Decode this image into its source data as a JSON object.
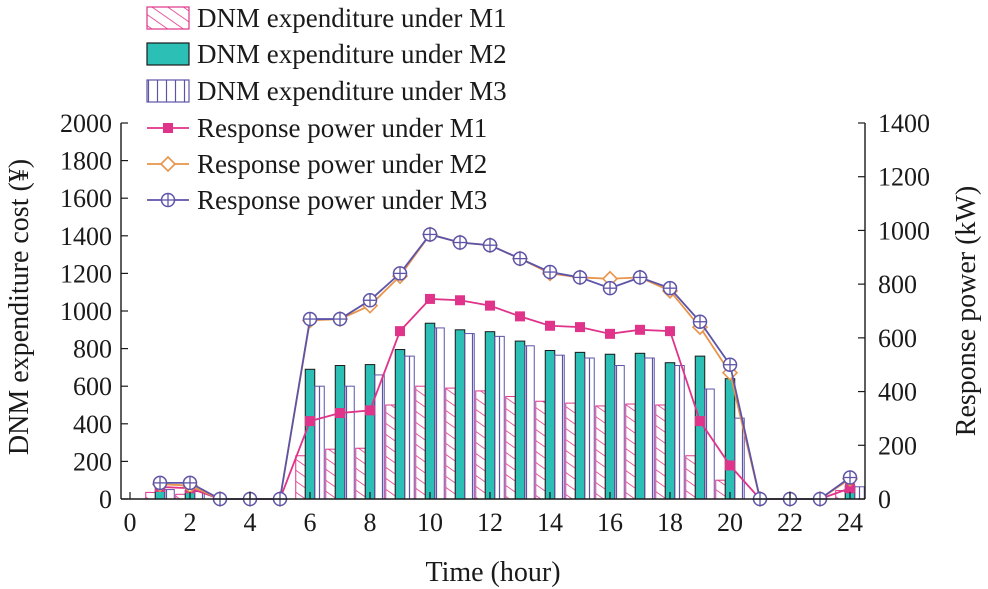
{
  "chart_data": {
    "type": "bar",
    "x": [
      1,
      2,
      3,
      4,
      5,
      6,
      7,
      8,
      9,
      10,
      11,
      12,
      13,
      14,
      15,
      16,
      17,
      18,
      19,
      20,
      21,
      22,
      23,
      24
    ],
    "xticks": [
      0,
      2,
      4,
      6,
      8,
      10,
      12,
      14,
      16,
      18,
      20,
      22,
      24
    ],
    "xlim": [
      -0.3,
      24.5
    ],
    "xlabel": "Time (hour)",
    "ylabel_left": "DNM expenditure cost (¥)",
    "ylabel_right": "Response power (kW)",
    "ylim_left": [
      0,
      2000
    ],
    "yticks_left": [
      0,
      200,
      400,
      600,
      800,
      1000,
      1200,
      1400,
      1600,
      1800,
      2000
    ],
    "ylim_right": [
      0,
      1400
    ],
    "yticks_right": [
      0,
      200,
      400,
      600,
      800,
      1000,
      1200,
      1400
    ],
    "bar_series": [
      {
        "name": "DNM expenditure under M1",
        "color": "#e0338a",
        "pattern": "diagonal-hatch",
        "values": [
          35,
          25,
          0,
          0,
          0,
          230,
          265,
          270,
          500,
          600,
          590,
          575,
          545,
          520,
          510,
          495,
          505,
          500,
          230,
          100,
          0,
          0,
          0,
          45
        ]
      },
      {
        "name": "DNM expenditure under M2",
        "color": "#2bbfb5",
        "pattern": "solid",
        "values": [
          55,
          45,
          0,
          0,
          0,
          690,
          710,
          715,
          795,
          935,
          900,
          890,
          840,
          790,
          780,
          770,
          775,
          725,
          760,
          640,
          0,
          0,
          0,
          70
        ]
      },
      {
        "name": "DNM expenditure under M3",
        "color": "#5d54a8",
        "pattern": "vertical-hatch",
        "values": [
          50,
          40,
          0,
          0,
          0,
          600,
          600,
          660,
          760,
          910,
          880,
          865,
          815,
          765,
          750,
          710,
          750,
          710,
          585,
          430,
          0,
          0,
          0,
          65
        ]
      }
    ],
    "line_series": [
      {
        "name": "Response power under M1",
        "color": "#e0338a",
        "marker": "square",
        "values": [
          45,
          40,
          0,
          0,
          0,
          290,
          320,
          330,
          625,
          745,
          740,
          720,
          680,
          645,
          640,
          615,
          630,
          625,
          290,
          125,
          0,
          0,
          0,
          40
        ]
      },
      {
        "name": "Response power under M2",
        "color": "#e8944a",
        "marker": "diamond",
        "values": [
          55,
          50,
          0,
          0,
          0,
          665,
          670,
          720,
          830,
          985,
          955,
          945,
          895,
          840,
          825,
          820,
          825,
          775,
          640,
          470,
          0,
          0,
          0,
          75
        ]
      },
      {
        "name": "Response power under M3",
        "color": "#5d54a8",
        "marker": "circle-plus",
        "values": [
          60,
          60,
          0,
          0,
          0,
          670,
          670,
          740,
          840,
          985,
          955,
          945,
          895,
          845,
          825,
          785,
          825,
          785,
          660,
          500,
          0,
          0,
          0,
          80
        ]
      }
    ],
    "legend": [
      "DNM expenditure under M1",
      "DNM expenditure under M2",
      "DNM expenditure under M3",
      "Response power under M1",
      "Response power under M2",
      "Response power under M3"
    ],
    "legend_position": "top-left",
    "grid": false
  }
}
